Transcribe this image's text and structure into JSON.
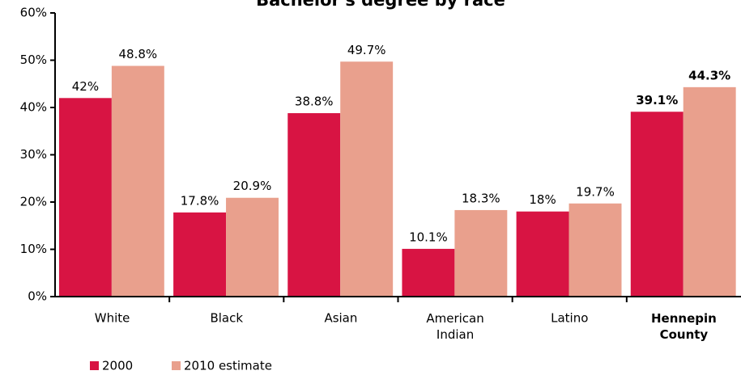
{
  "chart_data": {
    "type": "bar",
    "title": "Bachelor's degree by race",
    "categories": [
      "White",
      "Black",
      "Asian",
      "American Indian",
      "Latino",
      "Hennepin County"
    ],
    "series": [
      {
        "name": "2000",
        "color": "#d81443",
        "values": [
          42,
          17.8,
          38.8,
          10.1,
          18,
          39.1
        ],
        "value_labels": [
          "42%",
          "17.8%",
          "38.8%",
          "10.1%",
          "18%",
          "39.1%"
        ]
      },
      {
        "name": "2010 estimate",
        "color": "#e9a08d",
        "values": [
          48.8,
          20.9,
          49.7,
          18.3,
          19.7,
          44.3
        ],
        "value_labels": [
          "48.8%",
          "20.9%",
          "49.7%",
          "18.3%",
          "19.7%",
          "44.3%"
        ]
      }
    ],
    "ylim": [
      0,
      60
    ],
    "yticks": [
      {
        "value": 0,
        "label": "0%"
      },
      {
        "value": 10,
        "label": "10%"
      },
      {
        "value": 20,
        "label": "20%"
      },
      {
        "value": 30,
        "label": "30%"
      },
      {
        "value": 40,
        "label": "40%"
      },
      {
        "value": 50,
        "label": "50%"
      },
      {
        "value": 60,
        "label": "60%"
      }
    ],
    "grid": false
  }
}
